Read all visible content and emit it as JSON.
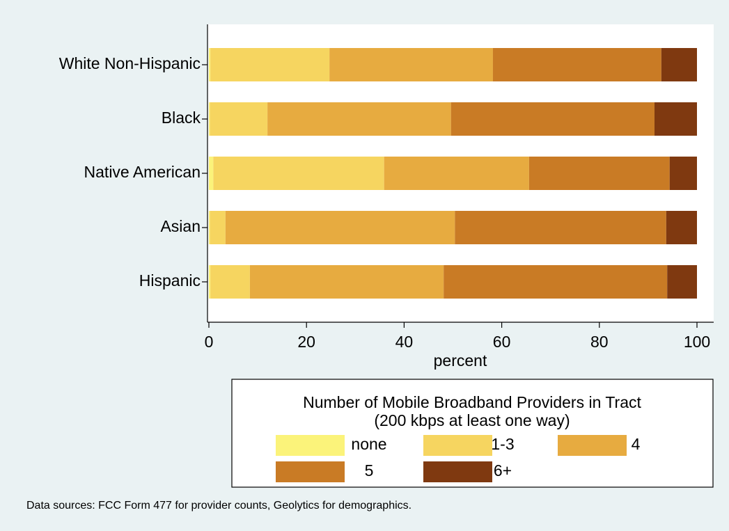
{
  "chart_data": {
    "type": "stacked_barh",
    "categories": [
      "White Non-Hispanic",
      "Black",
      "Native American",
      "Asian",
      "Hispanic"
    ],
    "series": [
      {
        "name": "none",
        "color": "#fbf37a",
        "values": [
          0.3,
          0.2,
          0.9,
          0.2,
          0.3
        ]
      },
      {
        "name": "1-3",
        "color": "#f6d560",
        "values": [
          24.4,
          11.8,
          35.0,
          3.2,
          8.1
        ]
      },
      {
        "name": "4",
        "color": "#e7ab40",
        "values": [
          33.5,
          37.6,
          29.7,
          47.0,
          39.7
        ]
      },
      {
        "name": "5",
        "color": "#c97b25",
        "values": [
          34.5,
          41.7,
          28.8,
          43.3,
          45.8
        ]
      },
      {
        "name": "6+",
        "color": "#7f3910",
        "values": [
          7.3,
          8.7,
          5.6,
          6.3,
          6.1
        ]
      }
    ],
    "xlabel": "percent",
    "xlim": [
      0,
      100
    ],
    "xticks": [
      0,
      20,
      40,
      60,
      80,
      100
    ],
    "legend_title": [
      "Number of Mobile Broadband Providers in Tract",
      "(200 kbps at least one way)"
    ],
    "note": "Data sources:  FCC Form 477 for provider counts, Geolytics for demographics."
  }
}
